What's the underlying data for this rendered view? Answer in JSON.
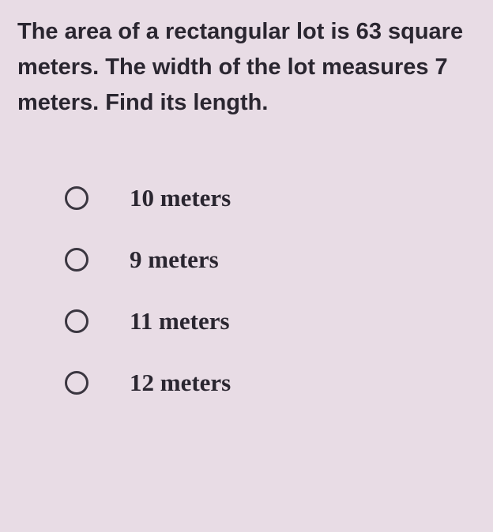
{
  "question": {
    "text": "The area of a rectangular lot is 63 square meters. The width of the lot measures 7 meters. Find its length.",
    "fontsize": 29,
    "fontweight": "bold",
    "color": "#2a2630"
  },
  "options": [
    {
      "label": "10 meters",
      "selected": false
    },
    {
      "label": "9 meters",
      "selected": false
    },
    {
      "label": "11 meters",
      "selected": false
    },
    {
      "label": "12 meters",
      "selected": false
    }
  ],
  "styling": {
    "background_color": "#e8dce5",
    "radio_border_color": "#3a3640",
    "radio_size": 30,
    "option_fontsize": 31,
    "option_fontweight": "bold",
    "option_fontfamily": "Times New Roman"
  }
}
